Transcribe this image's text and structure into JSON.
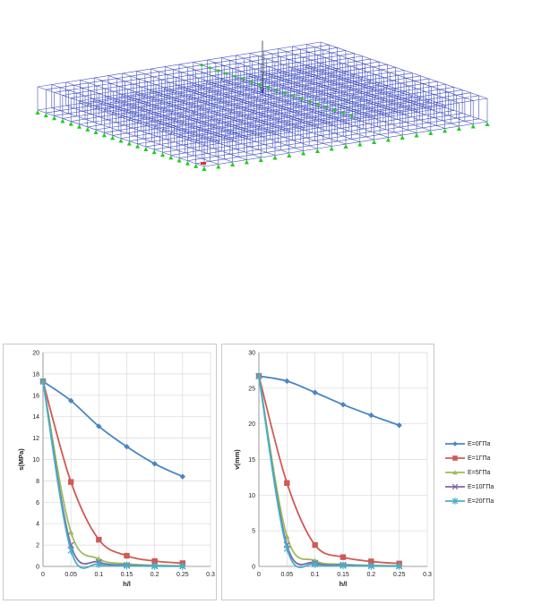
{
  "model": {
    "line_color": "#1f2fb4",
    "support_color": "#22cc22",
    "load_color": "#2b2bd0",
    "marker_color": "#e03030"
  },
  "chart_data": [
    {
      "type": "line",
      "title": "",
      "xlabel": "h/l",
      "ylabel": "s(MPa)",
      "xlim": [
        0,
        0.3
      ],
      "ylim": [
        0,
        20
      ],
      "xticks": [
        "0",
        "0.05",
        "0.1",
        "0.15",
        "0.2",
        "0.25",
        "0.3"
      ],
      "yticks": [
        "0",
        "2",
        "4",
        "6",
        "8",
        "10",
        "12",
        "14",
        "16",
        "18",
        "20"
      ],
      "grid": true,
      "legend": "none",
      "series": [
        {
          "name": "E=0ГПа",
          "x": [
            0,
            0.05,
            0.1,
            0.15,
            0.2,
            0.25
          ],
          "y": [
            17.3,
            15.5,
            13.1,
            11.2,
            9.6,
            8.4
          ]
        },
        {
          "name": "E=1ГПа",
          "x": [
            0,
            0.05,
            0.1,
            0.15,
            0.2,
            0.25
          ],
          "y": [
            17.3,
            7.9,
            2.5,
            1.0,
            0.5,
            0.3
          ]
        },
        {
          "name": "E=5ГПа",
          "x": [
            0,
            0.05,
            0.1,
            0.15,
            0.2,
            0.25
          ],
          "y": [
            17.3,
            3.2,
            0.7,
            0.25,
            0.1,
            0.05
          ]
        },
        {
          "name": "E=10ГПа",
          "x": [
            0,
            0.05,
            0.1,
            0.15,
            0.2,
            0.25
          ],
          "y": [
            17.3,
            2.0,
            0.4,
            0.12,
            0.05,
            0.02
          ]
        },
        {
          "name": "E=20ГПа",
          "x": [
            0,
            0.05,
            0.1,
            0.15,
            0.2,
            0.25
          ],
          "y": [
            17.3,
            1.5,
            0.2,
            0.06,
            0.02,
            0.01
          ]
        }
      ]
    },
    {
      "type": "line",
      "title": "",
      "xlabel": "h/l",
      "ylabel": "v(mm)",
      "xlim": [
        0,
        0.3
      ],
      "ylim": [
        0,
        30
      ],
      "xticks": [
        "0",
        "0.05",
        "0.1",
        "0.15",
        "0.2",
        "0.25",
        "0.3"
      ],
      "yticks": [
        "0",
        "5",
        "10",
        "15",
        "20",
        "25",
        "30"
      ],
      "grid": true,
      "legend": "right",
      "series": [
        {
          "name": "E=0ГПа",
          "x": [
            0,
            0.05,
            0.1,
            0.15,
            0.2,
            0.25
          ],
          "y": [
            26.7,
            26.0,
            24.4,
            22.7,
            21.2,
            19.8
          ]
        },
        {
          "name": "E=1ГПа",
          "x": [
            0,
            0.05,
            0.1,
            0.15,
            0.2,
            0.25
          ],
          "y": [
            26.7,
            11.7,
            3.0,
            1.3,
            0.7,
            0.4
          ]
        },
        {
          "name": "E=5ГПа",
          "x": [
            0,
            0.05,
            0.1,
            0.15,
            0.2,
            0.25
          ],
          "y": [
            26.7,
            4.2,
            0.8,
            0.3,
            0.15,
            0.08
          ]
        },
        {
          "name": "E=10ГПа",
          "x": [
            0,
            0.05,
            0.1,
            0.15,
            0.2,
            0.25
          ],
          "y": [
            26.7,
            3.0,
            0.5,
            0.2,
            0.08,
            0.04
          ]
        },
        {
          "name": "E=20ГПа",
          "x": [
            0,
            0.05,
            0.1,
            0.15,
            0.2,
            0.25
          ],
          "y": [
            26.7,
            2.5,
            0.3,
            0.1,
            0.04,
            0.02
          ]
        }
      ]
    }
  ],
  "series_style": [
    {
      "color": "#4a86c2",
      "marker": "diamond"
    },
    {
      "color": "#d05a55",
      "marker": "square"
    },
    {
      "color": "#9cbc5c",
      "marker": "triangle"
    },
    {
      "color": "#8066a6",
      "marker": "x"
    },
    {
      "color": "#46b0c8",
      "marker": "star"
    }
  ],
  "legend": {
    "items": [
      "E=0ГПа",
      "E=1ГПа",
      "E=5ГПа",
      "E=10ГПа",
      "E=20ГПа"
    ]
  }
}
